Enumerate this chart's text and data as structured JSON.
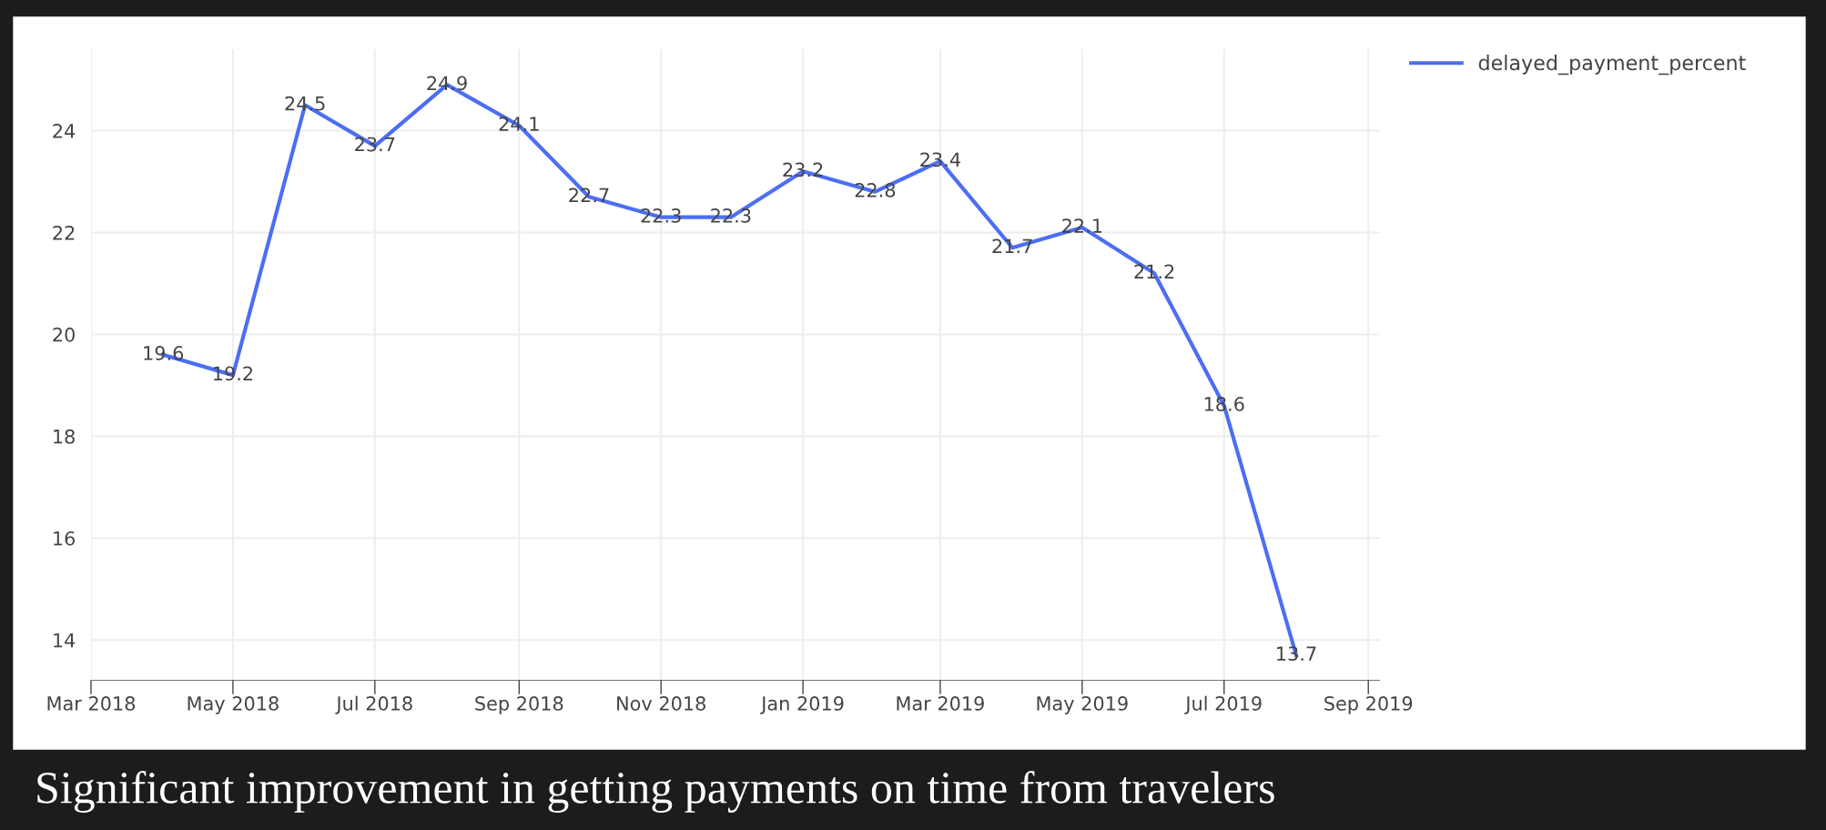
{
  "chart_data": {
    "type": "line",
    "x": [
      "2018-04-01",
      "2018-05-01",
      "2018-06-01",
      "2018-07-01",
      "2018-08-01",
      "2018-09-01",
      "2018-10-01",
      "2018-11-01",
      "2018-12-01",
      "2019-01-01",
      "2019-02-01",
      "2019-03-01",
      "2019-04-01",
      "2019-05-01",
      "2019-06-01",
      "2019-07-01",
      "2019-08-01"
    ],
    "series": [
      {
        "name": "delayed_payment_percent",
        "color": "#4c6ef5",
        "values": [
          19.6,
          19.2,
          24.5,
          23.7,
          24.9,
          24.1,
          22.7,
          22.3,
          22.3,
          23.2,
          22.8,
          23.4,
          21.7,
          22.1,
          21.2,
          18.6,
          13.7
        ]
      }
    ],
    "xlim": [
      "2018-03-01",
      "2019-09-06"
    ],
    "xticks": [
      {
        "value": "2018-03-01",
        "label": "Mar 2018"
      },
      {
        "value": "2018-05-01",
        "label": "May 2018"
      },
      {
        "value": "2018-07-01",
        "label": "Jul 2018"
      },
      {
        "value": "2018-09-01",
        "label": "Sep 2018"
      },
      {
        "value": "2018-11-01",
        "label": "Nov 2018"
      },
      {
        "value": "2019-01-01",
        "label": "Jan 2019"
      },
      {
        "value": "2019-03-01",
        "label": "Mar 2019"
      },
      {
        "value": "2019-05-01",
        "label": "May 2019"
      },
      {
        "value": "2019-07-01",
        "label": "Jul 2019"
      },
      {
        "value": "2019-09-01",
        "label": "Sep 2019"
      }
    ],
    "ylim": [
      13.2,
      25.6
    ],
    "yticks": [
      14,
      16,
      18,
      20,
      22,
      24
    ],
    "grid": true,
    "legend": "top right",
    "marker": "none",
    "line_style": "solid",
    "data_labels": true,
    "annotations": [
      "Significant improvement in getting payments on time from travelers"
    ]
  }
}
